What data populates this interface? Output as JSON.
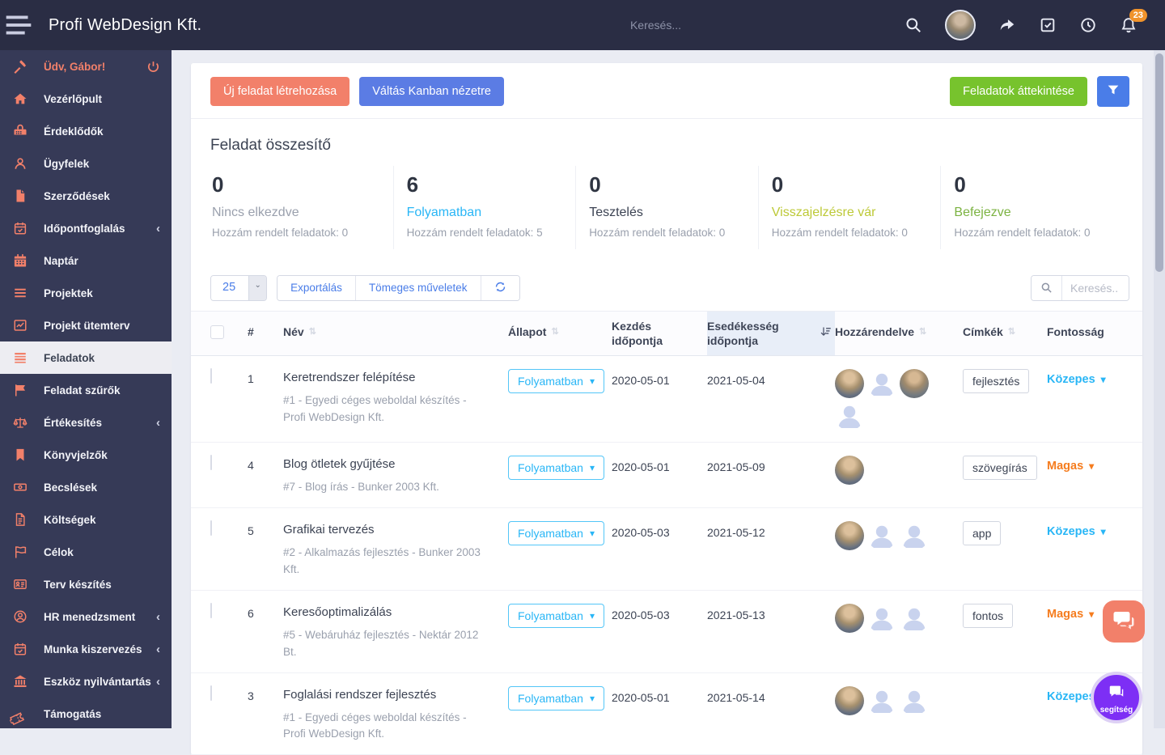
{
  "topbar": {
    "brand": "Profi WebDesign Kft.",
    "search_placeholder": "Keresés...",
    "notification_count": "23"
  },
  "sidebar": {
    "items": [
      {
        "label": "Üdv, Gábor!",
        "icon": "gavel-icon"
      },
      {
        "label": "Vezérlőpult",
        "icon": "home-icon"
      },
      {
        "label": "Érdeklődők",
        "icon": "phone-icon"
      },
      {
        "label": "Ügyfelek",
        "icon": "user-icon"
      },
      {
        "label": "Szerződések",
        "icon": "file-icon"
      },
      {
        "label": "Időpontfoglalás",
        "icon": "calendar-check-icon",
        "submenu": true
      },
      {
        "label": "Naptár",
        "icon": "calendar-icon"
      },
      {
        "label": "Projektek",
        "icon": "list-icon"
      },
      {
        "label": "Projekt ütemterv",
        "icon": "chart-line-icon"
      },
      {
        "label": "Feladatok",
        "icon": "tasks-icon",
        "active": true
      },
      {
        "label": "Feladat szűrők",
        "icon": "flag-icon"
      },
      {
        "label": "Értékesítés",
        "icon": "scale-icon",
        "submenu": true
      },
      {
        "label": "Könyvjelzők",
        "icon": "bookmark-icon"
      },
      {
        "label": "Becslések",
        "icon": "money-icon"
      },
      {
        "label": "Költségek",
        "icon": "invoice-icon"
      },
      {
        "label": "Célok",
        "icon": "goal-flag-icon"
      },
      {
        "label": "Terv készítés",
        "icon": "id-card-icon"
      },
      {
        "label": "HR menedzsment",
        "icon": "user-circle-icon",
        "submenu": true
      },
      {
        "label": "Munka kiszervezés",
        "icon": "calendar-check-icon",
        "submenu": true
      },
      {
        "label": "Eszköz nyilvántartás",
        "icon": "bank-icon",
        "submenu": true
      },
      {
        "label": "Támogatás",
        "icon": "ticket-icon"
      }
    ]
  },
  "toolbar": {
    "new_task_label": "Új feladat létrehozása",
    "kanban_label": "Váltás Kanban nézetre",
    "overview_label": "Feladatok áttekintése"
  },
  "summary": {
    "title": "Feladat összesítő",
    "stats": [
      {
        "count": "0",
        "label": "Nincs elkezdve",
        "assigned_text": "Hozzám rendelt feladatok: 0",
        "color_class": "c-gray"
      },
      {
        "count": "6",
        "label": "Folyamatban",
        "assigned_text": "Hozzám rendelt feladatok: 5",
        "color_class": "c-cyan"
      },
      {
        "count": "0",
        "label": "Tesztelés",
        "assigned_text": "Hozzám rendelt feladatok: 0",
        "color_class": "c-dark"
      },
      {
        "count": "0",
        "label": "Visszajelzésre vár",
        "assigned_text": "Hozzám rendelt feladatok: 0",
        "color_class": "c-olive"
      },
      {
        "count": "0",
        "label": "Befejezve",
        "assigned_text": "Hozzám rendelt feladatok: 0",
        "color_class": "c-green"
      }
    ]
  },
  "table": {
    "page_size": "25",
    "export_label": "Exportálás",
    "bulk_label": "Tömeges műveletek",
    "search_placeholder": "Keresés..",
    "headers": {
      "num": "#",
      "name": "Név",
      "status": "Állapot",
      "start": "Kezdés időpontja",
      "due": "Esedékesség időpontja",
      "assigned": "Hozzárendelve",
      "tags": "Címkék",
      "priority": "Fontosság"
    },
    "rows": [
      {
        "num": "1",
        "title": "Keretrendszer felépítése",
        "subtitle": "#1 - Egyedi céges weboldal készítés - Profi WebDesign Kft.",
        "status": "Folyamatban",
        "start": "2020-05-01",
        "due": "2021-05-04",
        "avatars": [
          "photo",
          "placeholder",
          "photo",
          "placeholder"
        ],
        "tag": "fejlesztés",
        "priority": "Közepes",
        "priority_class": "medium"
      },
      {
        "num": "4",
        "title": "Blog ötletek gyűjtése",
        "subtitle": "#7 - Blog írás - Bunker 2003 Kft.",
        "status": "Folyamatban",
        "start": "2020-05-01",
        "due": "2021-05-09",
        "avatars": [
          "photo"
        ],
        "tag": "szövegírás",
        "priority": "Magas",
        "priority_class": "high"
      },
      {
        "num": "5",
        "title": "Grafikai tervezés",
        "subtitle": "#2 - Alkalmazás fejlesztés - Bunker 2003 Kft.",
        "status": "Folyamatban",
        "start": "2020-05-03",
        "due": "2021-05-12",
        "avatars": [
          "photo",
          "placeholder",
          "placeholder"
        ],
        "tag": "app",
        "priority": "Közepes",
        "priority_class": "medium"
      },
      {
        "num": "6",
        "title": "Keresőoptimalizálás",
        "subtitle": "#5 - Webáruház fejlesztés - Nektár 2012 Bt.",
        "status": "Folyamatban",
        "start": "2020-05-03",
        "due": "2021-05-13",
        "avatars": [
          "photo",
          "placeholder",
          "placeholder"
        ],
        "tag": "fontos",
        "priority": "Magas",
        "priority_class": "high"
      },
      {
        "num": "3",
        "title": "Foglalási rendszer fejlesztés",
        "subtitle": "#1 - Egyedi céges weboldal készítés - Profi WebDesign Kft.",
        "status": "Folyamatban",
        "start": "2020-05-01",
        "due": "2021-05-14",
        "avatars": [
          "photo",
          "placeholder",
          "placeholder"
        ],
        "tag": "",
        "priority": "Közepes",
        "priority_class": "medium"
      }
    ]
  },
  "floating": {
    "help_label": "segítség"
  },
  "colors": {
    "topbar_bg": "#2a2d44",
    "sidebar_bg": "#363a57",
    "accent_salmon": "#f2806a",
    "accent_blue": "#5b7ce4",
    "accent_green": "#77c32d",
    "status_cyan": "#29b6f6",
    "priority_high_orange": "#f57c1e",
    "badge_orange": "#f0932b",
    "help_purple": "#7d2ff5"
  }
}
